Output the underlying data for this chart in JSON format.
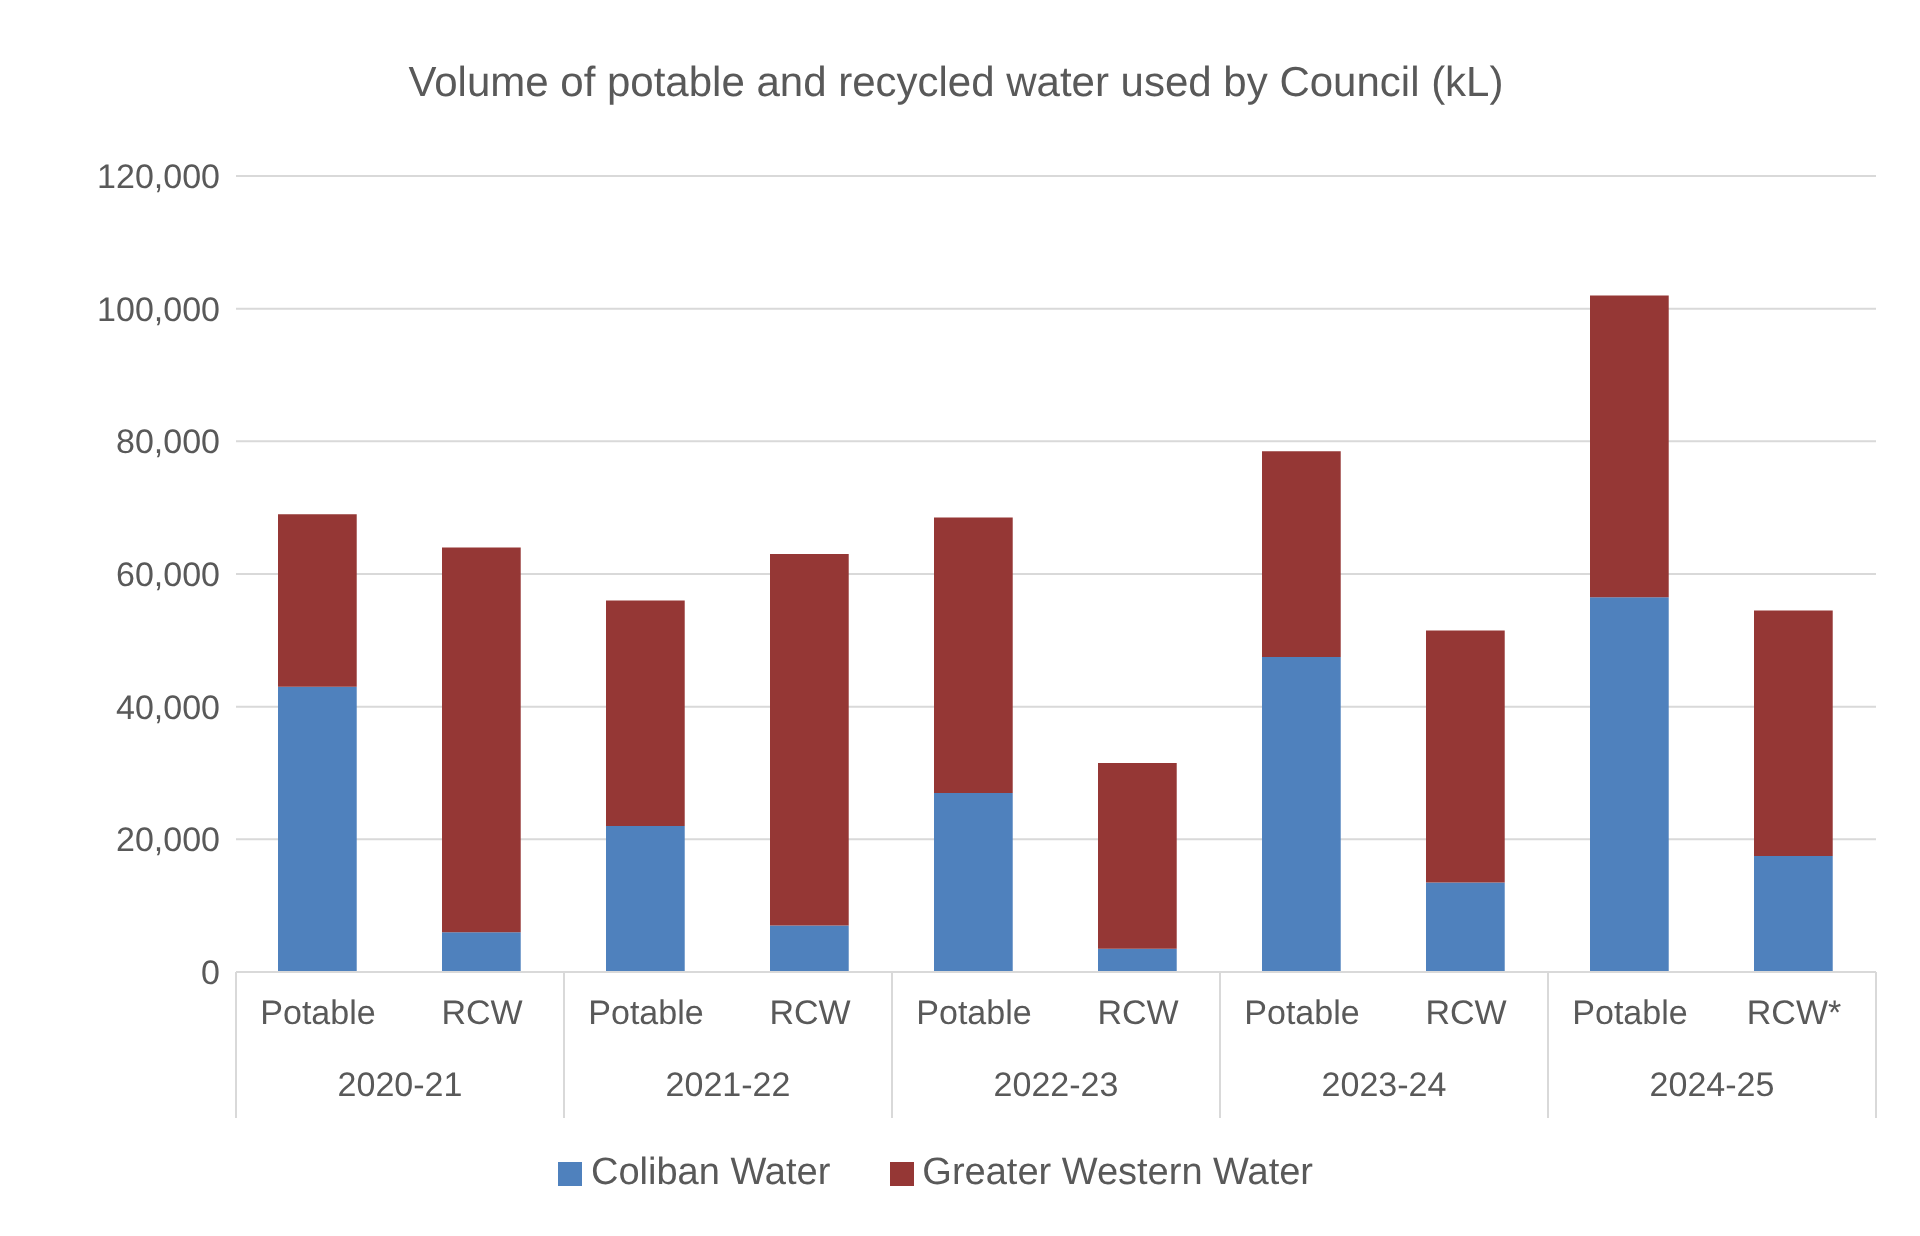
{
  "chart_data": {
    "type": "bar",
    "title": "Volume of potable and recycled water used by Council (kL)",
    "stacked": true,
    "categories": [
      "Potable",
      "RCW",
      "Potable",
      "RCW",
      "Potable",
      "RCW",
      "Potable",
      "RCW",
      "Potable",
      "RCW*"
    ],
    "annotations": [
      "2020-21",
      "2021-22",
      "2022-23",
      "2023-24",
      "2024-25"
    ],
    "series": [
      {
        "name": "Coliban Water",
        "color": "#4f81bd",
        "values": [
          43000,
          6000,
          22000,
          7000,
          27000,
          3500,
          47500,
          13500,
          56500,
          17500
        ]
      },
      {
        "name": "Greater Western Water",
        "color": "#953735",
        "values": [
          26000,
          58000,
          34000,
          56000,
          41500,
          28000,
          31000,
          38000,
          45500,
          37000
        ]
      }
    ],
    "ylim": [
      0,
      120000
    ],
    "yticks": [
      0,
      {
        "value": 20000,
        "label": "20,000"
      },
      {
        "value": 40000,
        "label": "40,000"
      },
      {
        "value": 60000,
        "label": "60,000"
      },
      {
        "value": 80000,
        "label": "80,000"
      },
      {
        "value": 100000,
        "label": "100,000"
      },
      {
        "value": 120000,
        "label": "120,000"
      }
    ],
    "grid": "y",
    "legend": "bottom"
  }
}
